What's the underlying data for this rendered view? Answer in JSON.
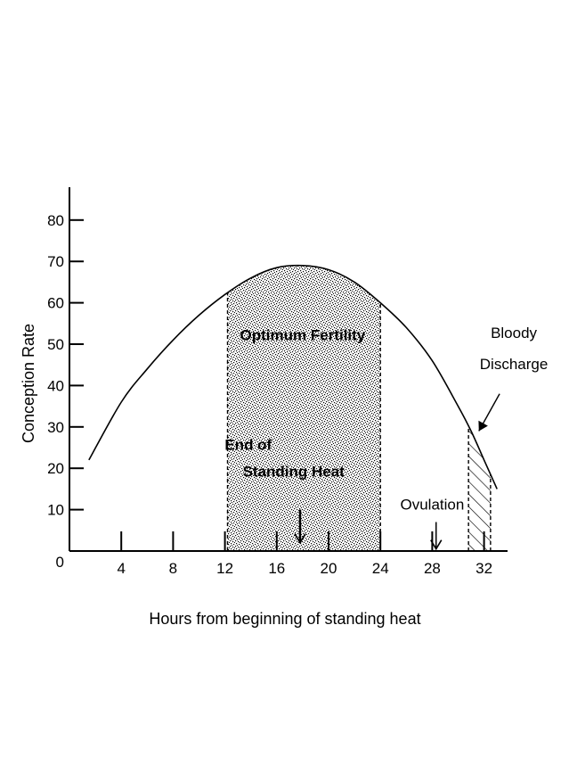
{
  "chart_data": {
    "type": "line",
    "xlabel": "Hours from beginning of standing heat",
    "ylabel": "Conception Rate",
    "xlim": [
      0,
      34
    ],
    "ylim": [
      0,
      85
    ],
    "x_ticks": [
      0,
      4,
      8,
      12,
      16,
      20,
      24,
      28,
      32
    ],
    "x_tick_labels": [
      "0",
      "4",
      "8",
      "12",
      "16",
      "20",
      "24",
      "28",
      "32"
    ],
    "y_ticks": [
      10,
      20,
      30,
      40,
      50,
      60,
      70,
      80
    ],
    "y_tick_labels": [
      "10",
      "20",
      "30",
      "40",
      "50",
      "60",
      "70",
      "80"
    ],
    "grid": false,
    "series": [
      {
        "x": [
          1.5,
          4,
          6,
          8,
          10,
          12,
          14,
          16,
          18,
          20,
          22,
          24,
          26,
          28,
          30,
          31,
          32,
          33
        ],
        "y": [
          22,
          36,
          44,
          51,
          57,
          62,
          66,
          68.5,
          69,
          68,
          65,
          60,
          54,
          46,
          35,
          29,
          22,
          15
        ]
      }
    ],
    "shaded_regions": [
      {
        "label": "Optimum Fertility",
        "x_start": 12.2,
        "x_end": 24,
        "pattern": "stipple"
      },
      {
        "label": "Bloody Discharge",
        "x_start": 30.8,
        "x_end": 32.5,
        "pattern": "hatch"
      }
    ],
    "annotations": [
      {
        "id": "optimum",
        "text": "Optimum Fertility",
        "x": 18,
        "y": 51
      },
      {
        "id": "end_heat_1",
        "text": "End of",
        "x": 13.8,
        "y": 24.5
      },
      {
        "id": "end_heat_2",
        "text": "Standing Heat",
        "x": 17.3,
        "y": 18
      },
      {
        "id": "ovulation",
        "text": "Ovulation",
        "x": 28,
        "y": 10
      },
      {
        "id": "bloody_1",
        "text": "Bloody",
        "x": 34.3,
        "y": 51.5
      },
      {
        "id": "bloody_2",
        "text": "Discharge",
        "x": 34.3,
        "y": 44
      }
    ],
    "arrows": [
      {
        "id": "end_heat_arrow",
        "x": 17.8,
        "y_from": 10,
        "y_to": 2
      },
      {
        "id": "ovulation_arrow",
        "x": 28.3,
        "y_from": 7,
        "y_to": 0.5
      },
      {
        "id": "discharge_arrow",
        "from": [
          33.2,
          38
        ],
        "to": [
          31.6,
          29
        ]
      }
    ]
  }
}
